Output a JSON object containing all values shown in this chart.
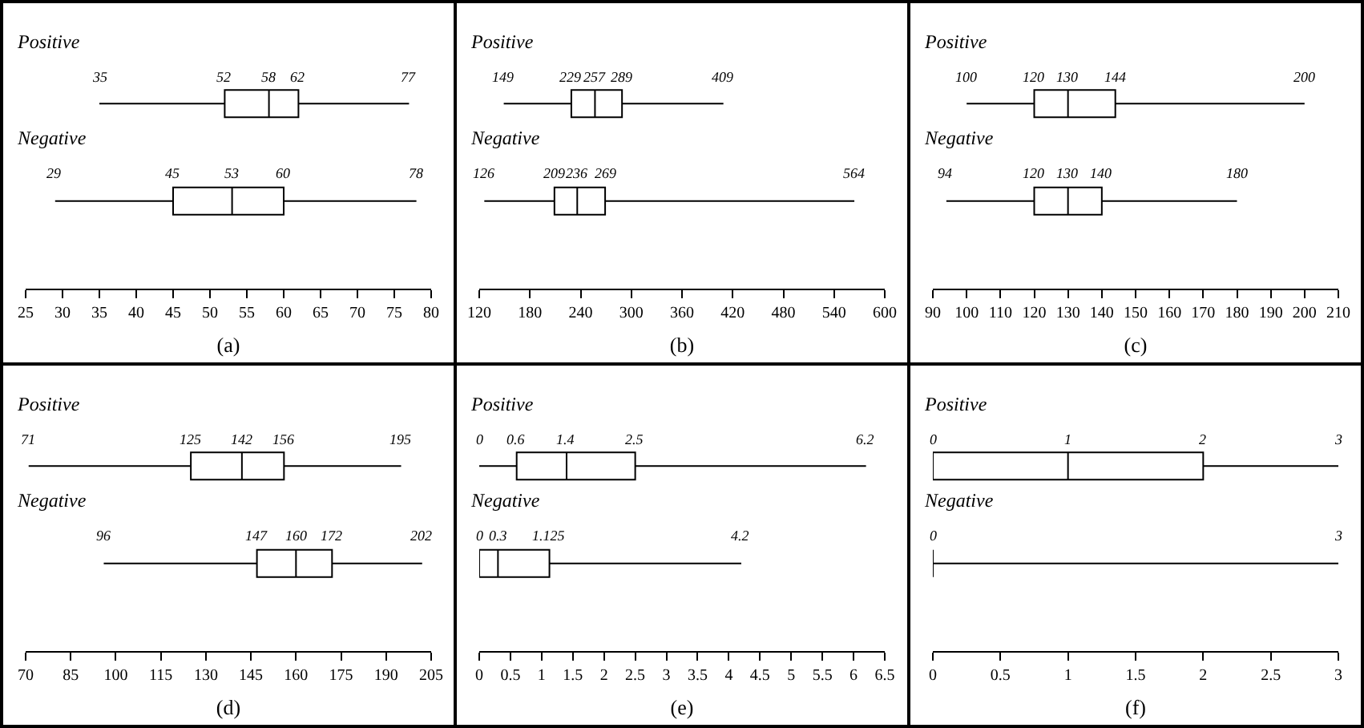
{
  "chart_data": [
    {
      "type": "box",
      "orientation": "horizontal",
      "xlabel": "(a)",
      "categories": [
        "Positive",
        "Negative"
      ],
      "boxes": [
        {
          "low": 35,
          "q1": 52,
          "median": 58,
          "q3": 62,
          "high": 77
        },
        {
          "low": 29,
          "q1": 45,
          "median": 53,
          "q3": 60,
          "high": 78
        }
      ],
      "value_labels": [
        [
          "35",
          "52",
          "58",
          "62",
          "77"
        ],
        [
          "29",
          "45",
          "53",
          "60",
          "78"
        ]
      ],
      "xlim": [
        25,
        80
      ],
      "xticks": [
        25,
        30,
        35,
        40,
        45,
        50,
        55,
        60,
        65,
        70,
        75,
        80
      ]
    },
    {
      "type": "box",
      "orientation": "horizontal",
      "xlabel": "(b)",
      "categories": [
        "Positive",
        "Negative"
      ],
      "boxes": [
        {
          "low": 149,
          "q1": 229,
          "median": 257,
          "q3": 289,
          "high": 409
        },
        {
          "low": 126,
          "q1": 209,
          "median": 236,
          "q3": 269,
          "high": 564
        }
      ],
      "value_labels": [
        [
          "149",
          "229",
          "257",
          "289",
          "409"
        ],
        [
          "126",
          "209",
          "236",
          "269",
          "564"
        ]
      ],
      "xlim": [
        120,
        600
      ],
      "xticks": [
        120,
        180,
        240,
        300,
        360,
        420,
        480,
        540,
        600
      ]
    },
    {
      "type": "box",
      "orientation": "horizontal",
      "xlabel": "(c)",
      "categories": [
        "Positive",
        "Negative"
      ],
      "boxes": [
        {
          "low": 100,
          "q1": 120,
          "median": 130,
          "q3": 144,
          "high": 200
        },
        {
          "low": 94,
          "q1": 120,
          "median": 130,
          "q3": 140,
          "high": 180
        }
      ],
      "value_labels": [
        [
          "100",
          "120",
          "130",
          "144",
          "200"
        ],
        [
          "94",
          "120",
          "130",
          "140",
          "180"
        ]
      ],
      "xlim": [
        90,
        210
      ],
      "xticks": [
        90,
        100,
        110,
        120,
        130,
        140,
        150,
        160,
        170,
        180,
        190,
        200,
        210
      ]
    },
    {
      "type": "box",
      "orientation": "horizontal",
      "xlabel": "(d)",
      "categories": [
        "Positive",
        "Negative"
      ],
      "boxes": [
        {
          "low": 71,
          "q1": 125,
          "median": 142,
          "q3": 156,
          "high": 195
        },
        {
          "low": 96,
          "q1": 147,
          "median": 160,
          "q3": 172,
          "high": 202
        }
      ],
      "value_labels": [
        [
          "71",
          "125",
          "142",
          "156",
          "195"
        ],
        [
          "96",
          "147",
          "160",
          "172",
          "202"
        ]
      ],
      "xlim": [
        70,
        205
      ],
      "xticks": [
        70,
        85,
        100,
        115,
        130,
        145,
        160,
        175,
        190,
        205
      ]
    },
    {
      "type": "box",
      "orientation": "horizontal",
      "xlabel": "(e)",
      "categories": [
        "Positive",
        "Negative"
      ],
      "boxes": [
        {
          "low": 0,
          "q1": 0.6,
          "median": 1.4,
          "q3": 2.5,
          "high": 6.2
        },
        {
          "low": 0,
          "q1": 0,
          "median": 0.3,
          "q3": 1.125,
          "high": 4.2
        }
      ],
      "value_labels": [
        [
          "0",
          "0.6",
          "1.4",
          "2.5",
          "6.2"
        ],
        [
          "0",
          null,
          "0.3",
          "1.125",
          "4.2"
        ]
      ],
      "xlim": [
        0,
        6.5
      ],
      "xticks": [
        0,
        0.5,
        1,
        1.5,
        2,
        2.5,
        3,
        3.5,
        4,
        4.5,
        5,
        5.5,
        6,
        6.5
      ]
    },
    {
      "type": "box",
      "orientation": "horizontal",
      "xlabel": "(f)",
      "categories": [
        "Positive",
        "Negative"
      ],
      "boxes": [
        {
          "low": 0,
          "q1": 0,
          "median": 1,
          "q3": 2,
          "high": 3
        },
        {
          "low": 0,
          "q1": 0,
          "median": 0,
          "q3": 0,
          "high": 3
        }
      ],
      "value_labels": [
        [
          "0",
          null,
          "1",
          "2",
          "3"
        ],
        [
          "0",
          null,
          null,
          null,
          "3"
        ]
      ],
      "xlim": [
        0,
        3
      ],
      "xticks": [
        0,
        0.5,
        1,
        1.5,
        2,
        2.5,
        3
      ]
    }
  ]
}
